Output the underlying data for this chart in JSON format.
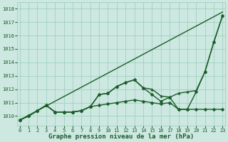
{
  "xlabel": "Graphe pression niveau de la mer (hPa)",
  "bg_color": "#cce8e0",
  "grid_color": "#99ccbb",
  "line_color": "#1a5c2a",
  "x_ticks": [
    0,
    1,
    2,
    3,
    4,
    5,
    6,
    7,
    8,
    9,
    10,
    11,
    12,
    13,
    14,
    15,
    16,
    17,
    18,
    19,
    20,
    21,
    22,
    23
  ],
  "ylim": [
    1009.3,
    1018.5
  ],
  "xlim": [
    -0.3,
    23.3
  ],
  "yticks": [
    1010,
    1011,
    1012,
    1013,
    1014,
    1015,
    1016,
    1017,
    1018
  ],
  "series": [
    {
      "x": [
        0,
        1,
        2,
        3,
        4,
        5,
        6,
        7,
        8,
        9,
        10,
        11,
        12,
        13,
        14,
        15,
        16,
        17,
        18,
        19,
        20,
        21,
        22,
        23
      ],
      "y": [
        1009.7,
        1010.05,
        1010.4,
        1010.75,
        1011.1,
        1011.45,
        1011.8,
        1012.15,
        1012.5,
        1012.85,
        1013.2,
        1013.55,
        1013.9,
        1014.25,
        1014.6,
        1014.95,
        1015.3,
        1015.65,
        1016.0,
        1016.35,
        1016.7,
        1017.05,
        1017.4,
        1017.75
      ],
      "marker": null,
      "markersize": 0,
      "linewidth": 1.0
    },
    {
      "x": [
        0,
        1,
        2,
        3,
        4,
        5,
        6,
        7,
        8,
        9,
        10,
        11,
        12,
        13,
        14,
        15,
        16,
        17,
        18,
        19,
        20,
        21,
        22,
        23
      ],
      "y": [
        1009.7,
        1010.0,
        1010.4,
        1010.8,
        1010.3,
        1010.3,
        1010.3,
        1010.4,
        1010.7,
        1011.6,
        1011.7,
        1012.2,
        1012.5,
        1012.7,
        1012.1,
        1011.6,
        1011.1,
        1011.4,
        1010.5,
        1010.5,
        1011.8,
        1013.3,
        1015.5,
        1017.5
      ],
      "marker": "D",
      "markersize": 2.5,
      "linewidth": 1.0
    },
    {
      "x": [
        0,
        1,
        2,
        3,
        4,
        5,
        6,
        7,
        8,
        9,
        10,
        11,
        12,
        13,
        14,
        15,
        16,
        17,
        18,
        19,
        20,
        21,
        22,
        23
      ],
      "y": [
        1009.7,
        1010.0,
        1010.4,
        1010.8,
        1010.3,
        1010.3,
        1010.3,
        1010.4,
        1010.7,
        1010.8,
        1010.9,
        1011.0,
        1011.1,
        1011.2,
        1011.1,
        1011.0,
        1010.9,
        1011.0,
        1010.5,
        1010.5,
        1010.5,
        1010.5,
        1010.5,
        1010.5
      ],
      "marker": "D",
      "markersize": 2.5,
      "linewidth": 1.0
    },
    {
      "x": [
        0,
        1,
        2,
        3,
        4,
        5,
        6,
        7,
        8,
        9,
        10,
        11,
        12,
        13,
        14,
        15,
        16,
        17,
        18,
        19,
        20,
        21,
        22,
        23
      ],
      "y": [
        1009.7,
        1010.0,
        1010.4,
        1010.8,
        1010.3,
        1010.3,
        1010.3,
        1010.4,
        1010.7,
        1011.6,
        1011.7,
        1012.2,
        1012.5,
        1012.7,
        1012.1,
        1012.0,
        1011.5,
        1011.4,
        1011.7,
        1011.8,
        1011.9,
        1013.3,
        1015.5,
        1017.5
      ],
      "marker": "^",
      "markersize": 2.5,
      "linewidth": 1.0
    }
  ],
  "tick_fontsize": 5.0,
  "xlabel_fontsize": 6.5,
  "xlabel_fontweight": "bold"
}
